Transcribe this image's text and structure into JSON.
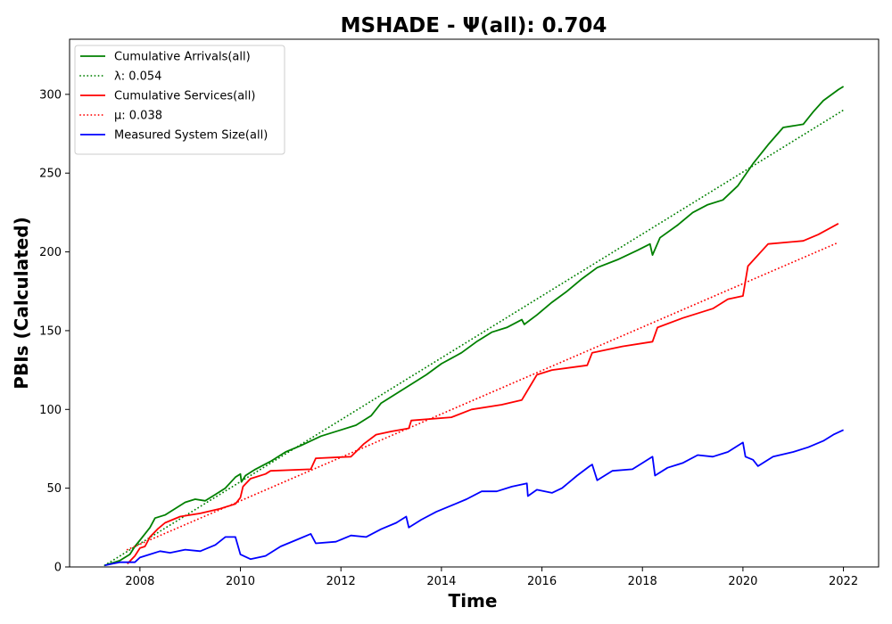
{
  "chart_data": {
    "type": "line",
    "title": "MSHADE -  Ψ(all): 0.704",
    "xlabel": "Time",
    "ylabel": "PBIs (Calculated)",
    "xlim": [
      2006.6,
      2022.7
    ],
    "ylim": [
      0,
      335
    ],
    "xticks": [
      2008,
      2010,
      2012,
      2014,
      2016,
      2018,
      2020,
      2022
    ],
    "yticks": [
      0,
      50,
      100,
      150,
      200,
      250,
      300
    ],
    "grid": false,
    "legend_position": "top-left",
    "series": [
      {
        "name": "Cumulative Arrivals(all)",
        "color": "#008000",
        "style": "solid",
        "points": [
          [
            2007.3,
            1
          ],
          [
            2007.6,
            4
          ],
          [
            2007.8,
            8
          ],
          [
            2007.9,
            13
          ],
          [
            2008.0,
            17
          ],
          [
            2008.1,
            21
          ],
          [
            2008.2,
            25
          ],
          [
            2008.3,
            31
          ],
          [
            2008.5,
            33
          ],
          [
            2008.7,
            37
          ],
          [
            2008.9,
            41
          ],
          [
            2009.1,
            43
          ],
          [
            2009.3,
            42
          ],
          [
            2009.5,
            46
          ],
          [
            2009.7,
            50
          ],
          [
            2009.9,
            57
          ],
          [
            2010.0,
            59
          ],
          [
            2010.02,
            54
          ],
          [
            2010.1,
            58
          ],
          [
            2010.3,
            62
          ],
          [
            2010.6,
            67
          ],
          [
            2010.9,
            73
          ],
          [
            2011.2,
            77
          ],
          [
            2011.6,
            83
          ],
          [
            2012.0,
            87
          ],
          [
            2012.3,
            90
          ],
          [
            2012.6,
            96
          ],
          [
            2012.8,
            104
          ],
          [
            2013.1,
            110
          ],
          [
            2013.4,
            116
          ],
          [
            2013.7,
            122
          ],
          [
            2014.0,
            129
          ],
          [
            2014.4,
            136
          ],
          [
            2014.7,
            143
          ],
          [
            2015.0,
            149
          ],
          [
            2015.3,
            152
          ],
          [
            2015.6,
            157
          ],
          [
            2015.65,
            154
          ],
          [
            2015.9,
            160
          ],
          [
            2016.2,
            168
          ],
          [
            2016.5,
            175
          ],
          [
            2016.8,
            183
          ],
          [
            2017.1,
            190
          ],
          [
            2017.5,
            195
          ],
          [
            2017.9,
            201
          ],
          [
            2018.15,
            205
          ],
          [
            2018.2,
            198
          ],
          [
            2018.35,
            209
          ],
          [
            2018.7,
            217
          ],
          [
            2019.0,
            225
          ],
          [
            2019.3,
            230
          ],
          [
            2019.6,
            233
          ],
          [
            2019.9,
            242
          ],
          [
            2020.2,
            256
          ],
          [
            2020.5,
            268
          ],
          [
            2020.8,
            279
          ],
          [
            2021.2,
            281
          ],
          [
            2021.4,
            289
          ],
          [
            2021.6,
            296
          ],
          [
            2021.9,
            303
          ],
          [
            2022.0,
            305
          ]
        ]
      },
      {
        "name": "λ: 0.054",
        "color": "#008000",
        "style": "dotted",
        "points": [
          [
            2007.3,
            1
          ],
          [
            2022.0,
            290
          ]
        ]
      },
      {
        "name": "Cumulative Services(all)",
        "color": "#ff0000",
        "style": "solid",
        "points": [
          [
            2007.75,
            2
          ],
          [
            2007.9,
            7
          ],
          [
            2008.0,
            12
          ],
          [
            2008.1,
            13
          ],
          [
            2008.2,
            19
          ],
          [
            2008.35,
            24
          ],
          [
            2008.5,
            28
          ],
          [
            2008.8,
            32
          ],
          [
            2009.2,
            34
          ],
          [
            2009.6,
            37
          ],
          [
            2009.9,
            40
          ],
          [
            2010.0,
            44
          ],
          [
            2010.05,
            51
          ],
          [
            2010.2,
            56
          ],
          [
            2010.5,
            59
          ],
          [
            2010.6,
            61
          ],
          [
            2011.4,
            62
          ],
          [
            2011.5,
            69
          ],
          [
            2012.2,
            70
          ],
          [
            2012.45,
            78
          ],
          [
            2012.7,
            84
          ],
          [
            2013.0,
            86
          ],
          [
            2013.35,
            88
          ],
          [
            2013.4,
            93
          ],
          [
            2014.2,
            95
          ],
          [
            2014.6,
            100
          ],
          [
            2015.2,
            103
          ],
          [
            2015.6,
            106
          ],
          [
            2015.75,
            114
          ],
          [
            2015.9,
            122
          ],
          [
            2016.2,
            125
          ],
          [
            2016.9,
            128
          ],
          [
            2017.0,
            136
          ],
          [
            2017.6,
            140
          ],
          [
            2018.2,
            143
          ],
          [
            2018.3,
            152
          ],
          [
            2018.8,
            158
          ],
          [
            2019.4,
            164
          ],
          [
            2019.7,
            170
          ],
          [
            2020.0,
            172
          ],
          [
            2020.1,
            191
          ],
          [
            2020.5,
            205
          ],
          [
            2021.2,
            207
          ],
          [
            2021.5,
            211
          ],
          [
            2021.9,
            218
          ]
        ]
      },
      {
        "name": "μ: 0.038",
        "color": "#ff0000",
        "style": "dotted",
        "points": [
          [
            2007.75,
            11
          ],
          [
            2021.9,
            206
          ]
        ]
      },
      {
        "name": "Measured System Size(all)",
        "color": "#0000ff",
        "style": "solid",
        "points": [
          [
            2007.3,
            1
          ],
          [
            2007.6,
            3
          ],
          [
            2007.9,
            3
          ],
          [
            2008.0,
            6
          ],
          [
            2008.2,
            8
          ],
          [
            2008.4,
            10
          ],
          [
            2008.6,
            9
          ],
          [
            2008.9,
            11
          ],
          [
            2009.2,
            10
          ],
          [
            2009.5,
            14
          ],
          [
            2009.7,
            19
          ],
          [
            2009.9,
            19
          ],
          [
            2010.0,
            8
          ],
          [
            2010.2,
            5
          ],
          [
            2010.5,
            7
          ],
          [
            2010.8,
            13
          ],
          [
            2011.1,
            17
          ],
          [
            2011.4,
            21
          ],
          [
            2011.5,
            15
          ],
          [
            2011.9,
            16
          ],
          [
            2012.2,
            20
          ],
          [
            2012.5,
            19
          ],
          [
            2012.8,
            24
          ],
          [
            2013.1,
            28
          ],
          [
            2013.3,
            32
          ],
          [
            2013.35,
            25
          ],
          [
            2013.6,
            30
          ],
          [
            2013.9,
            35
          ],
          [
            2014.2,
            39
          ],
          [
            2014.5,
            43
          ],
          [
            2014.8,
            48
          ],
          [
            2015.1,
            48
          ],
          [
            2015.4,
            51
          ],
          [
            2015.7,
            53
          ],
          [
            2015.72,
            45
          ],
          [
            2015.9,
            49
          ],
          [
            2016.2,
            47
          ],
          [
            2016.4,
            50
          ],
          [
            2016.7,
            58
          ],
          [
            2016.95,
            64
          ],
          [
            2017.0,
            65
          ],
          [
            2017.1,
            55
          ],
          [
            2017.4,
            61
          ],
          [
            2017.8,
            62
          ],
          [
            2018.0,
            66
          ],
          [
            2018.2,
            70
          ],
          [
            2018.25,
            58
          ],
          [
            2018.5,
            63
          ],
          [
            2018.8,
            66
          ],
          [
            2019.1,
            71
          ],
          [
            2019.4,
            70
          ],
          [
            2019.7,
            73
          ],
          [
            2019.9,
            77
          ],
          [
            2020.0,
            79
          ],
          [
            2020.05,
            70
          ],
          [
            2020.2,
            68
          ],
          [
            2020.3,
            64
          ],
          [
            2020.6,
            70
          ],
          [
            2021.0,
            73
          ],
          [
            2021.3,
            76
          ],
          [
            2021.6,
            80
          ],
          [
            2021.8,
            84
          ],
          [
            2022.0,
            87
          ]
        ]
      }
    ]
  }
}
